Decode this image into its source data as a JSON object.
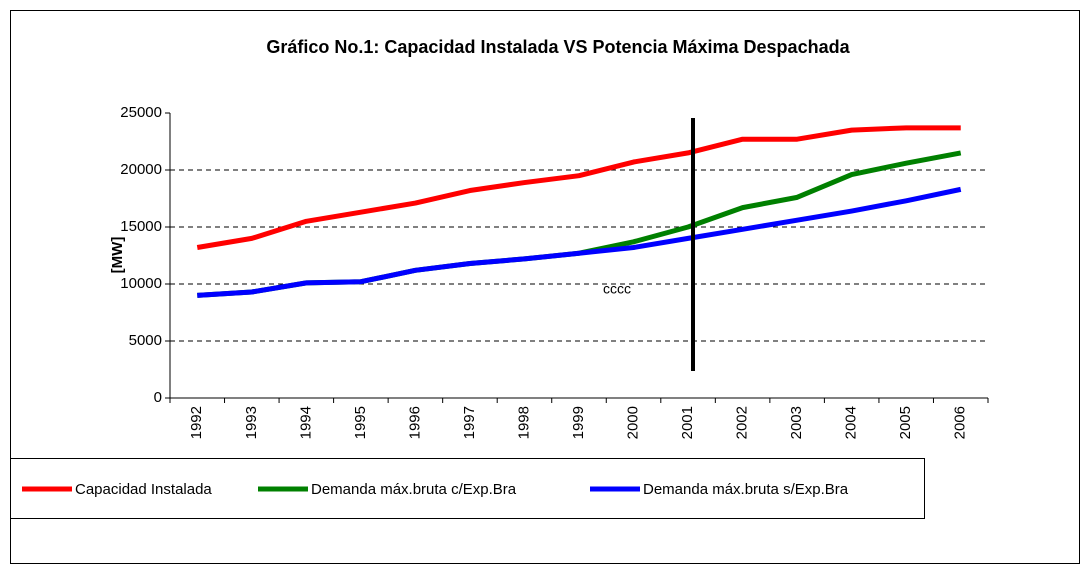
{
  "chart_data": {
    "type": "line",
    "title": "Gráfico No.1:  Capacidad Instalada VS Potencia Máxima Despachada",
    "y_label": "[MW]",
    "annotation": "cccc",
    "categories": [
      "1992",
      "1993",
      "1994",
      "1995",
      "1996",
      "1997",
      "1998",
      "1999",
      "2000",
      "2001",
      "2002",
      "2003",
      "2004",
      "2005",
      "2006"
    ],
    "series": [
      {
        "name": "Capacidad Instalada",
        "color": "#ff0000",
        "values": [
          13200,
          14000,
          15500,
          16300,
          17100,
          18200,
          18900,
          19500,
          20700,
          21500,
          22700,
          22700,
          23500,
          23700,
          23700
        ]
      },
      {
        "name": "Demanda máx.bruta c/Exp.Bra",
        "color": "#008000",
        "values": [
          9000,
          9300,
          10100,
          10200,
          11200,
          11800,
          12200,
          12700,
          13700,
          15000,
          16700,
          17600,
          19600,
          20600,
          21500
        ]
      },
      {
        "name": "Demanda máx.bruta s/Exp.Bra",
        "color": "#0000ff",
        "values": [
          9000,
          9300,
          10100,
          10200,
          11200,
          11800,
          12200,
          12700,
          13200,
          14000,
          14800,
          15600,
          16400,
          17300,
          18300
        ]
      }
    ],
    "ylim": [
      0,
      25000
    ],
    "yticks": [
      0,
      5000,
      10000,
      15000,
      20000,
      25000
    ],
    "grid": true
  }
}
